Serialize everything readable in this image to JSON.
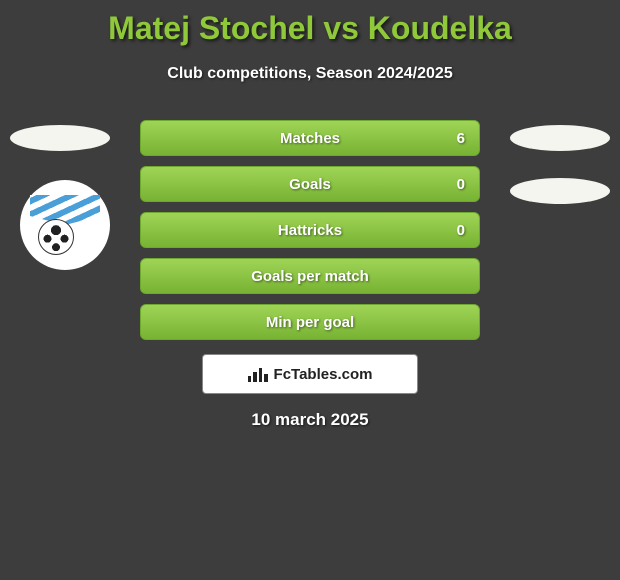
{
  "header": {
    "title": "Matej Stochel vs Koudelka",
    "subtitle": "Club competitions, Season 2024/2025"
  },
  "stats": {
    "rows": [
      {
        "label": "Matches",
        "value_right": "6",
        "show_value": true
      },
      {
        "label": "Goals",
        "value_right": "0",
        "show_value": true
      },
      {
        "label": "Hattricks",
        "value_right": "0",
        "show_value": true
      },
      {
        "label": "Goals per match",
        "value_right": "",
        "show_value": false
      },
      {
        "label": "Min per goal",
        "value_right": "",
        "show_value": false
      }
    ],
    "bar_gradient_top": "#9fd456",
    "bar_gradient_bottom": "#78b333",
    "bar_border": "#6fa82e"
  },
  "attribution": {
    "text": "FcTables.com"
  },
  "date": "10 march 2025",
  "colors": {
    "background": "#3d3d3d",
    "title": "#8fc93a",
    "text": "#ffffff"
  }
}
